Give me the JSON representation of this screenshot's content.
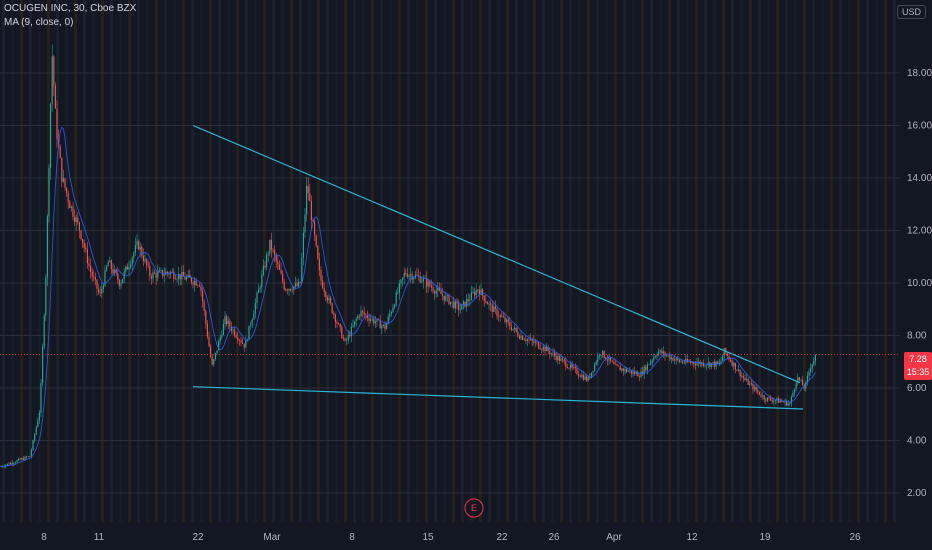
{
  "header": {
    "symbol_line": "OCUGEN INC, 30, Cboe BZX",
    "indicator_line": "MA (9, close, 0)"
  },
  "currency": "USD",
  "last_price": "7.28",
  "countdown": "15:35",
  "earnings_marker": "E",
  "colors": {
    "background": "#131722",
    "up": "#26a69a",
    "down": "#ef5350",
    "ma": "#2962ff",
    "trendline": "#29b6d6",
    "price_line": "#f23645"
  },
  "chart_data": {
    "type": "candlestick",
    "title": "",
    "ylim": [
      1.2,
      20.4
    ],
    "y_ticks": [
      2.0,
      4.0,
      6.0,
      8.0,
      10.0,
      12.0,
      14.0,
      16.0,
      18.0
    ],
    "y_tick_labels": [
      "2.00",
      "4.00",
      "6.00",
      "8.00",
      "10.00",
      "12.00",
      "14.00",
      "16.00",
      "18.00"
    ],
    "x_tick_labels": [
      "8",
      "11",
      "22",
      "Mar",
      "8",
      "15",
      "22",
      "26",
      "Apr",
      "12",
      "19",
      "26"
    ],
    "price_path": [
      {
        "t": 0,
        "p": 3.0
      },
      {
        "t": 30,
        "p": 3.4
      },
      {
        "t": 40,
        "p": 5.2
      },
      {
        "t": 46,
        "p": 10.5
      },
      {
        "t": 52,
        "p": 18.8
      },
      {
        "t": 56,
        "p": 16.0
      },
      {
        "t": 62,
        "p": 14.0
      },
      {
        "t": 70,
        "p": 13.0
      },
      {
        "t": 80,
        "p": 12.0
      },
      {
        "t": 90,
        "p": 10.5
      },
      {
        "t": 100,
        "p": 9.5
      },
      {
        "t": 108,
        "p": 10.8
      },
      {
        "t": 120,
        "p": 10.0
      },
      {
        "t": 138,
        "p": 11.5
      },
      {
        "t": 150,
        "p": 10.3
      },
      {
        "t": 170,
        "p": 10.4
      },
      {
        "t": 200,
        "p": 10.0
      },
      {
        "t": 212,
        "p": 6.8
      },
      {
        "t": 225,
        "p": 8.6
      },
      {
        "t": 245,
        "p": 7.6
      },
      {
        "t": 270,
        "p": 11.5
      },
      {
        "t": 285,
        "p": 9.8
      },
      {
        "t": 300,
        "p": 9.9
      },
      {
        "t": 307,
        "p": 13.8
      },
      {
        "t": 320,
        "p": 10.2
      },
      {
        "t": 345,
        "p": 7.7
      },
      {
        "t": 360,
        "p": 8.9
      },
      {
        "t": 385,
        "p": 8.3
      },
      {
        "t": 405,
        "p": 10.4
      },
      {
        "t": 420,
        "p": 10.2
      },
      {
        "t": 440,
        "p": 9.6
      },
      {
        "t": 460,
        "p": 9.0
      },
      {
        "t": 478,
        "p": 9.8
      },
      {
        "t": 490,
        "p": 9.1
      },
      {
        "t": 520,
        "p": 8.0
      },
      {
        "t": 545,
        "p": 7.5
      },
      {
        "t": 570,
        "p": 6.8
      },
      {
        "t": 588,
        "p": 6.3
      },
      {
        "t": 600,
        "p": 7.4
      },
      {
        "t": 615,
        "p": 6.8
      },
      {
        "t": 640,
        "p": 6.5
      },
      {
        "t": 658,
        "p": 7.4
      },
      {
        "t": 680,
        "p": 7.0
      },
      {
        "t": 720,
        "p": 6.9
      },
      {
        "t": 724,
        "p": 7.4
      },
      {
        "t": 745,
        "p": 6.3
      },
      {
        "t": 765,
        "p": 5.6
      },
      {
        "t": 780,
        "p": 5.5
      },
      {
        "t": 790,
        "p": 5.4
      },
      {
        "t": 797,
        "p": 6.4
      },
      {
        "t": 805,
        "p": 6.0
      },
      {
        "t": 810,
        "p": 6.8
      },
      {
        "t": 817,
        "p": 7.3
      }
    ],
    "trendlines": [
      {
        "name": "upper",
        "from": {
          "t": 193,
          "p": 16.0
        },
        "to": {
          "t": 800,
          "p": 6.2
        }
      },
      {
        "name": "lower",
        "from": {
          "t": 193,
          "p": 6.05
        },
        "to": {
          "t": 803,
          "p": 5.2
        }
      }
    ]
  }
}
